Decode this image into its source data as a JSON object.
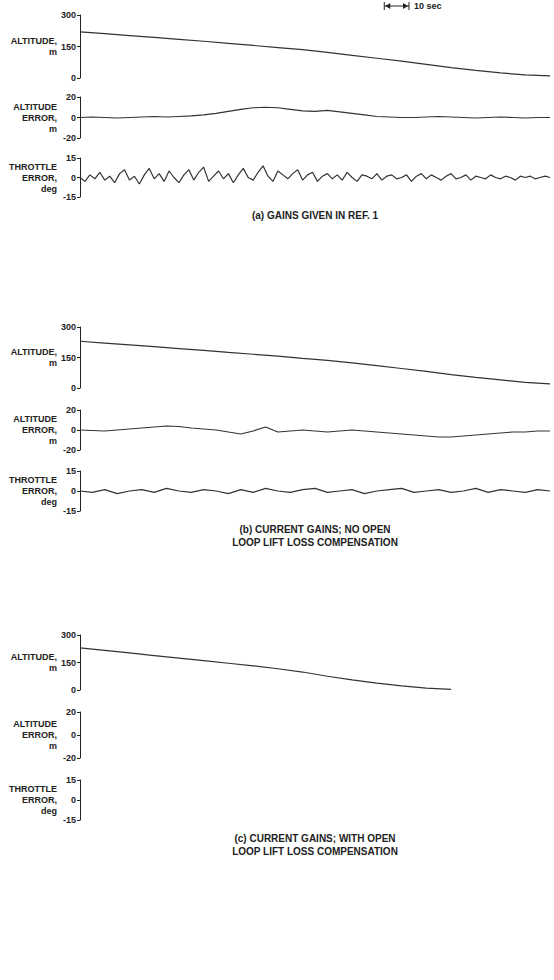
{
  "chart_data": [
    {
      "type": "line",
      "ylabel": "ALTITUDE, m",
      "xlim": [
        0,
        190
      ],
      "ylim": [
        0,
        300
      ],
      "yticks": [
        0,
        150,
        300
      ],
      "grid": false,
      "tick_labels": "y",
      "color": "#333333",
      "annotations": [
        {
          "text": "10 sec",
          "x": 123,
          "length": 10
        }
      ],
      "x": [
        0,
        10,
        20,
        30,
        40,
        50,
        60,
        70,
        80,
        90,
        100,
        110,
        120,
        130,
        140,
        150,
        160,
        170,
        180,
        190
      ],
      "values": [
        220,
        211,
        202,
        193,
        184,
        175,
        165,
        155,
        145,
        135,
        122,
        108,
        94,
        80,
        65,
        49,
        36,
        24,
        15,
        10
      ]
    },
    {
      "type": "line",
      "ylabel": "ALTITUDE ERROR, m",
      "xlim": [
        0,
        190
      ],
      "ylim": [
        -20,
        20
      ],
      "yticks": [
        -20,
        0,
        20
      ],
      "grid": false,
      "tick_labels": "y",
      "color": "#333333",
      "x": [
        0,
        5,
        10,
        15,
        20,
        25,
        30,
        35,
        40,
        45,
        50,
        55,
        60,
        65,
        70,
        75,
        80,
        85,
        90,
        95,
        100,
        105,
        110,
        115,
        120,
        125,
        130,
        135,
        140,
        145,
        150,
        155,
        160,
        165,
        170,
        175,
        180,
        185,
        190
      ],
      "values": [
        0,
        0.5,
        0,
        -0.5,
        0,
        0.5,
        1,
        0.5,
        1,
        1.5,
        2.5,
        4,
        6,
        8,
        9.5,
        10,
        9.5,
        8,
        6.5,
        6,
        7,
        5.5,
        4,
        2.5,
        1,
        0.5,
        0,
        0,
        0.5,
        1,
        0.5,
        0,
        -0.5,
        0,
        0.5,
        0,
        -0.5,
        0,
        0
      ]
    },
    {
      "type": "line",
      "ylabel": "THROTTLE ERROR, deg",
      "xlim": [
        0,
        190
      ],
      "ylim": [
        -15,
        15
      ],
      "yticks": [
        -15,
        0,
        15
      ],
      "grid": false,
      "tick_labels": "y",
      "color": "#333333",
      "annotations": [
        {
          "text": "(a) GAINS GIVEN IN REF. 1"
        }
      ],
      "x": [
        0,
        2,
        4,
        6,
        8,
        10,
        12,
        14,
        16,
        18,
        20,
        22,
        24,
        26,
        28,
        30,
        32,
        34,
        36,
        38,
        40,
        42,
        44,
        46,
        48,
        50,
        52,
        54,
        56,
        58,
        60,
        62,
        64,
        66,
        68,
        70,
        72,
        74,
        76,
        78,
        80,
        82,
        84,
        86,
        88,
        90,
        92,
        94,
        96,
        98,
        100,
        102,
        104,
        106,
        108,
        110,
        112,
        114,
        116,
        118,
        120,
        122,
        124,
        126,
        128,
        130,
        132,
        134,
        136,
        138,
        140,
        142,
        144,
        146,
        148,
        150,
        152,
        154,
        156,
        158,
        160,
        162,
        164,
        166,
        168,
        170,
        172,
        174,
        176,
        178,
        180,
        182,
        184,
        186,
        188,
        190
      ],
      "values": [
        0,
        -3,
        2,
        -1,
        4,
        -2,
        1,
        -4,
        3,
        6,
        -2,
        1,
        -5,
        2,
        7,
        -1,
        3,
        -3,
        5,
        0,
        -4,
        2,
        6,
        -2,
        4,
        8,
        -3,
        1,
        5,
        -1,
        3,
        -4,
        2,
        7,
        0,
        -2,
        4,
        9,
        1,
        -3,
        5,
        2,
        -1,
        3,
        6,
        -2,
        2,
        4,
        -3,
        1,
        3,
        -1,
        2,
        -2,
        4,
        0,
        -3,
        2,
        1,
        -1,
        3,
        -2,
        1,
        2,
        -1,
        0,
        2,
        -3,
        1,
        3,
        -1,
        2,
        0,
        -2,
        1,
        3,
        -1,
        0,
        2,
        -2,
        1,
        0,
        -1,
        2,
        0,
        -1,
        1,
        0,
        -2,
        1,
        0,
        1,
        -1,
        0,
        1,
        0
      ]
    },
    {
      "type": "line",
      "ylabel": "ALTITUDE, m",
      "xlim": [
        0,
        190
      ],
      "ylim": [
        0,
        300
      ],
      "yticks": [
        0,
        150,
        300
      ],
      "grid": false,
      "tick_labels": "y",
      "color": "#333333",
      "x": [
        0,
        10,
        20,
        30,
        40,
        50,
        60,
        70,
        80,
        90,
        100,
        110,
        120,
        130,
        140,
        150,
        160,
        170,
        180,
        190
      ],
      "values": [
        230,
        221,
        212,
        203,
        194,
        185,
        175,
        166,
        157,
        146,
        136,
        124,
        110,
        96,
        82,
        66,
        52,
        40,
        28,
        20
      ]
    },
    {
      "type": "line",
      "ylabel": "ALTITUDE ERROR, m",
      "xlim": [
        0,
        190
      ],
      "ylim": [
        -20,
        20
      ],
      "yticks": [
        -20,
        0,
        20
      ],
      "grid": false,
      "tick_labels": "y",
      "color": "#333333",
      "x": [
        0,
        5,
        10,
        15,
        20,
        25,
        30,
        35,
        40,
        45,
        50,
        55,
        60,
        65,
        70,
        75,
        80,
        85,
        90,
        95,
        100,
        105,
        110,
        115,
        120,
        125,
        130,
        135,
        140,
        145,
        150,
        155,
        160,
        165,
        170,
        175,
        180,
        185,
        190
      ],
      "values": [
        0,
        -0.5,
        -1,
        0,
        1,
        2,
        3,
        4,
        3.5,
        2,
        1,
        0,
        -2,
        -4,
        -1,
        3,
        -2,
        -1,
        0,
        -1,
        -2,
        -1,
        0,
        -1,
        -2,
        -3,
        -4,
        -5,
        -6,
        -7,
        -7,
        -6,
        -5,
        -4,
        -3,
        -2,
        -2,
        -1,
        -1
      ]
    },
    {
      "type": "line",
      "ylabel": "THROTTLE ERROR, deg",
      "xlim": [
        0,
        190
      ],
      "ylim": [
        -15,
        15
      ],
      "yticks": [
        -15,
        0,
        15
      ],
      "grid": false,
      "tick_labels": "y",
      "color": "#333333",
      "annotations": [
        {
          "text": "(b) CURRENT GAINS; NO OPEN LOOP LIFT LOSS COMPENSATION"
        }
      ],
      "x": [
        0,
        5,
        10,
        15,
        20,
        25,
        30,
        35,
        40,
        45,
        50,
        55,
        60,
        65,
        70,
        75,
        80,
        85,
        90,
        95,
        100,
        105,
        110,
        115,
        120,
        125,
        130,
        135,
        140,
        145,
        150,
        155,
        160,
        165,
        170,
        175,
        180,
        185,
        190
      ],
      "values": [
        0,
        -1,
        1,
        -2,
        0,
        1,
        -1,
        2,
        0,
        -1,
        1,
        0,
        -2,
        1,
        -1,
        2,
        0,
        -1,
        1,
        2,
        -1,
        0,
        1,
        -2,
        0,
        1,
        2,
        -1,
        0,
        1,
        -1,
        0,
        2,
        -1,
        1,
        0,
        -1,
        1,
        0
      ]
    },
    {
      "type": "line",
      "ylabel": "ALTITUDE, m",
      "xlim": [
        0,
        190
      ],
      "ylim": [
        0,
        300
      ],
      "yticks": [
        0,
        150,
        300
      ],
      "grid": false,
      "tick_labels": "y",
      "color": "#333333",
      "x": [
        0,
        10,
        20,
        30,
        40,
        50,
        60,
        70,
        80,
        90,
        100,
        110,
        120,
        130,
        140,
        150,
        160,
        170,
        180,
        190
      ],
      "values": [
        230,
        216,
        202,
        188,
        174,
        160,
        146,
        132,
        116,
        98,
        75,
        55,
        38,
        22,
        10,
        3,
        null,
        null,
        null,
        null
      ]
    },
    {
      "type": "line",
      "ylabel": "ALTITUDE ERROR, m",
      "xlim": [
        0,
        190
      ],
      "ylim": [
        -20,
        20
      ],
      "yticks": [
        -20,
        0,
        20
      ],
      "grid": false,
      "tick_labels": "y",
      "color": "#333333",
      "series": []
    },
    {
      "type": "line",
      "ylabel": "THROTTLE ERROR, deg",
      "xlim": [
        0,
        190
      ],
      "ylim": [
        -15,
        15
      ],
      "yticks": [
        -15,
        0,
        15
      ],
      "grid": false,
      "tick_labels": "y",
      "color": "#333333",
      "annotations": [
        {
          "text": "(c) CURRENT GAINS; WITH OPEN LOOP LIFT LOSS COMPENSATION"
        }
      ],
      "series": []
    }
  ]
}
